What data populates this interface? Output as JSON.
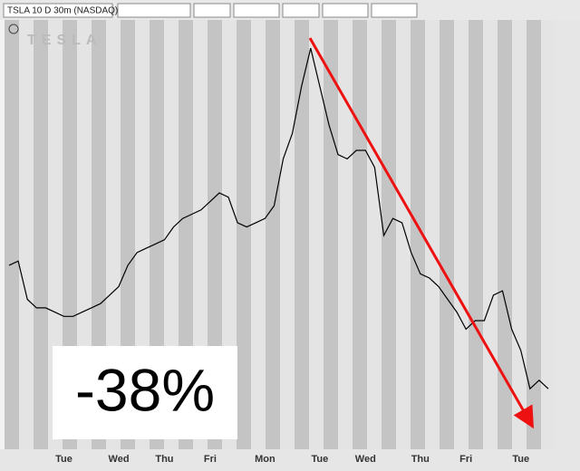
{
  "chart_data": {
    "type": "line",
    "header": "TSLA 10 D 30m (NASDAQ)",
    "logo": "TESLA",
    "annotation": "-38%",
    "color": "#000000",
    "arrow_color": "#ee1111",
    "ylim": [
      0,
      100
    ],
    "categories": [
      null,
      null,
      null,
      null,
      null,
      null,
      "Tue",
      null,
      null,
      null,
      null,
      null,
      "Wed",
      null,
      null,
      null,
      null,
      "Thu",
      null,
      null,
      null,
      null,
      "Fri",
      null,
      null,
      null,
      null,
      null,
      "Mon",
      null,
      null,
      null,
      null,
      null,
      "Tue",
      null,
      null,
      null,
      null,
      "Wed",
      null,
      null,
      null,
      null,
      null,
      "Thu",
      null,
      null,
      null,
      null,
      "Fri",
      null,
      null,
      null,
      null,
      null,
      "Tue",
      null,
      null,
      null
    ],
    "values": [
      43,
      44,
      35,
      33,
      33,
      32,
      31,
      31,
      32,
      33,
      34,
      36,
      38,
      43,
      46,
      47,
      48,
      49,
      52,
      54,
      55,
      56,
      58,
      60,
      59,
      53,
      52,
      53,
      54,
      57,
      68,
      74,
      85,
      94,
      85,
      76,
      69,
      68,
      70,
      70,
      66,
      50,
      54,
      53,
      46,
      41,
      40,
      38,
      35,
      32,
      28,
      30,
      30,
      36,
      37,
      28,
      23,
      14,
      16,
      14
    ]
  }
}
